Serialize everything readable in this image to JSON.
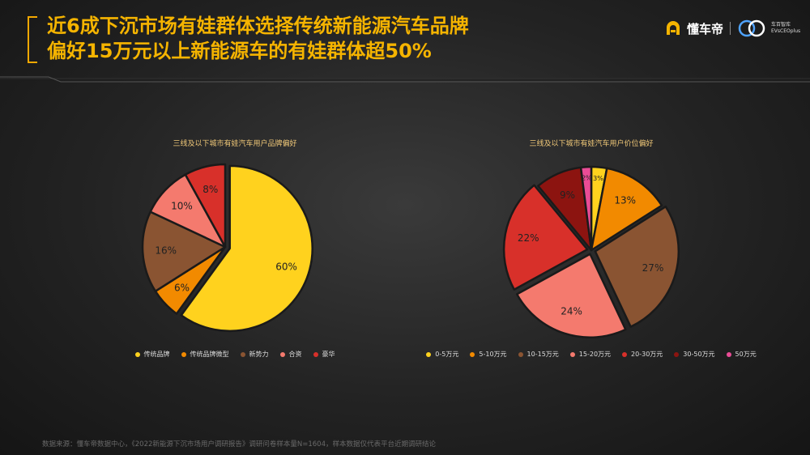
{
  "header": {
    "title_line1": "近6成下沉市场有娃群体选择传统新能源汽车品牌",
    "title_line2": "偏好15万元以上新能源车的有娃群体超50%",
    "logo_text": "懂车帝",
    "logo_badge": "100",
    "logo_sub": "车百智库 EVsCEOplus"
  },
  "colors": {
    "accent": "#f5b400",
    "background": "#232323"
  },
  "chart_data": [
    {
      "type": "pie",
      "title": "三线及以下城市有娃汽车用户品牌偏好",
      "categories": [
        "传统品牌",
        "传统品牌微型",
        "新势力",
        "合资",
        "豪华"
      ],
      "values": [
        60,
        6,
        16,
        10,
        8
      ],
      "labels": [
        "60%",
        "6%",
        "16%",
        "10%",
        "8%"
      ],
      "colors": [
        "#ffd21e",
        "#f28a00",
        "#8a5432",
        "#f47a6e",
        "#d8302a"
      ],
      "exploded": [
        0
      ],
      "legend_position": "bottom"
    },
    {
      "type": "pie",
      "title": "三线及以下城市有娃汽车用户价位偏好",
      "categories": [
        "0-5万元",
        "5-10万元",
        "10-15万元",
        "15-20万元",
        "20-30万元",
        "30-50万元",
        "50万元"
      ],
      "values": [
        3,
        13,
        27,
        24,
        22,
        9,
        2
      ],
      "labels": [
        "3%",
        "13%",
        "27%",
        "24%",
        "22%",
        "9%",
        "2%"
      ],
      "colors": [
        "#ffd21e",
        "#f28a00",
        "#8a5432",
        "#f47a6e",
        "#d8302a",
        "#8c1410",
        "#ea4c96"
      ],
      "exploded": [
        2,
        3,
        4
      ],
      "legend_position": "bottom"
    }
  ],
  "footer": {
    "source": "数据来源：懂车帝数据中心，《2022新能源下沉市场用户调研报告》调研问卷样本量N=1604，样本数据仅代表平台近期调研结论"
  }
}
